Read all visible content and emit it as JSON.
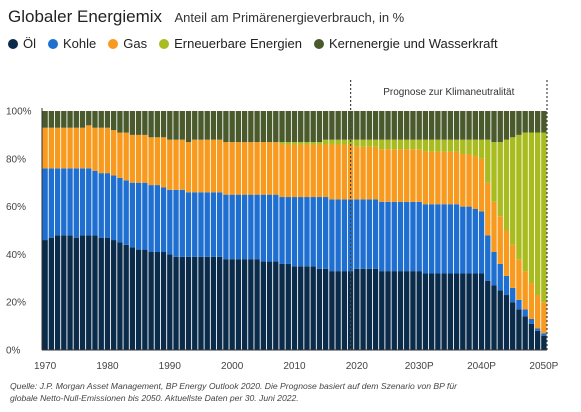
{
  "header": {
    "title": "Globaler Energiemix",
    "subtitle": "Anteil am Primärenergieverbrauch, in %"
  },
  "legend": [
    {
      "name": "Öl",
      "color": "#0b2b4a"
    },
    {
      "name": "Kohle",
      "color": "#1f6fd1"
    },
    {
      "name": "Gas",
      "color": "#f79a1e"
    },
    {
      "name": "Erneuerbare Energien",
      "color": "#a8bc1f"
    },
    {
      "name": "Kernenergie und Wasserkraft",
      "color": "#4a5a2c"
    }
  ],
  "forecast_label": "Prognose zur Klimaneutralität",
  "source": {
    "line1": "Quelle: J.P. Morgan Asset Management, BP Energy Outlook 2020. Die Prognose basiert auf dem Szenario von BP für",
    "line2": "globale Netto-Null-Emissionen bis 2050. Aktuellste Daten per 30. Juni 2022."
  },
  "chart_data": {
    "type": "bar",
    "stacked": true,
    "ylim": [
      0,
      100
    ],
    "y_ticks": [
      "0%",
      "20%",
      "40%",
      "60%",
      "80%",
      "100%"
    ],
    "x_tick_labels": [
      "1970",
      "1980",
      "1990",
      "2000",
      "2010",
      "2020",
      "2030P",
      "2040P",
      "2050P"
    ],
    "forecast_start": "2019",
    "x": [
      "1970",
      "1971",
      "1972",
      "1973",
      "1974",
      "1975",
      "1976",
      "1977",
      "1978",
      "1979",
      "1980",
      "1981",
      "1982",
      "1983",
      "1984",
      "1985",
      "1986",
      "1987",
      "1988",
      "1989",
      "1990",
      "1991",
      "1992",
      "1993",
      "1994",
      "1995",
      "1996",
      "1997",
      "1998",
      "1999",
      "2000",
      "2001",
      "2002",
      "2003",
      "2004",
      "2005",
      "2006",
      "2007",
      "2008",
      "2009",
      "2010",
      "2011",
      "2012",
      "2013",
      "2014",
      "2015",
      "2016",
      "2017",
      "2018",
      "2019",
      "2020",
      "2021",
      "2022",
      "2023",
      "2024",
      "2025",
      "2026",
      "2027",
      "2028",
      "2029",
      "2030",
      "2031",
      "2032",
      "2033",
      "2034",
      "2035",
      "2036",
      "2037",
      "2038",
      "2039",
      "2040",
      "2041",
      "2042",
      "2043",
      "2044",
      "2045",
      "2046",
      "2047",
      "2048",
      "2049",
      "2050"
    ],
    "series": [
      {
        "name": "Öl",
        "values": [
          46,
          47,
          48,
          48,
          48,
          47,
          48,
          48,
          48,
          47,
          47,
          46,
          45,
          44,
          43,
          42,
          42,
          41,
          41,
          41,
          40,
          39,
          39,
          39,
          39,
          39,
          39,
          39,
          39,
          38,
          38,
          38,
          38,
          38,
          38,
          37,
          37,
          37,
          36,
          36,
          35,
          35,
          35,
          35,
          34,
          34,
          33,
          33,
          33,
          33,
          34,
          34,
          34,
          34,
          33,
          33,
          33,
          33,
          33,
          33,
          33,
          32,
          32,
          32,
          32,
          32,
          32,
          32,
          32,
          32,
          32,
          29,
          27,
          25,
          23,
          20,
          17,
          14,
          11,
          8,
          6
        ]
      },
      {
        "name": "Kohle",
        "values": [
          30,
          29,
          28,
          28,
          28,
          29,
          28,
          28,
          27,
          27,
          27,
          27,
          27,
          27,
          27,
          28,
          28,
          28,
          28,
          27,
          27,
          28,
          28,
          27,
          27,
          27,
          27,
          27,
          27,
          27,
          27,
          27,
          27,
          27,
          27,
          28,
          28,
          28,
          28,
          28,
          29,
          29,
          29,
          29,
          30,
          30,
          30,
          30,
          30,
          30,
          29,
          29,
          29,
          29,
          29,
          29,
          29,
          29,
          29,
          29,
          29,
          29,
          29,
          29,
          29,
          29,
          29,
          28,
          28,
          27,
          26,
          19,
          14,
          11,
          8,
          6,
          4,
          3,
          2,
          1,
          1
        ]
      },
      {
        "name": "Gas",
        "values": [
          17,
          17,
          17,
          17,
          17,
          17,
          17,
          18,
          18,
          19,
          19,
          19,
          19,
          20,
          20,
          20,
          20,
          20,
          20,
          21,
          21,
          21,
          21,
          21,
          22,
          22,
          22,
          22,
          22,
          22,
          22,
          22,
          22,
          22,
          22,
          22,
          22,
          22,
          22,
          22,
          22,
          22,
          22,
          22,
          22,
          22,
          23,
          23,
          23,
          23,
          22,
          22,
          22,
          22,
          22,
          22,
          22,
          22,
          22,
          22,
          22,
          22,
          22,
          22,
          22,
          22,
          22,
          22,
          22,
          22,
          22,
          22,
          21,
          20,
          19,
          18,
          17,
          16,
          15,
          14,
          13
        ]
      },
      {
        "name": "Erneuerbare Energien",
        "values": [
          0,
          0,
          0,
          0,
          0,
          0,
          0,
          0,
          0,
          0,
          0,
          0,
          0,
          0,
          0,
          0,
          0,
          0,
          0,
          0,
          0,
          0,
          0,
          0,
          0,
          0,
          0,
          0,
          0,
          0,
          0,
          0,
          0,
          0,
          0,
          0,
          0,
          0,
          1,
          1,
          1,
          1,
          1,
          1,
          1,
          2,
          2,
          2,
          2,
          2,
          3,
          3,
          3,
          3,
          4,
          4,
          4,
          4,
          4,
          4,
          4,
          5,
          5,
          5,
          5,
          5,
          5,
          6,
          6,
          7,
          8,
          18,
          25,
          31,
          38,
          45,
          52,
          58,
          63,
          68,
          71
        ]
      },
      {
        "name": "Kernenergie und Wasserkraft",
        "values": [
          7,
          7,
          7,
          7,
          7,
          7,
          7,
          6,
          7,
          7,
          7,
          8,
          9,
          9,
          10,
          10,
          10,
          11,
          11,
          11,
          12,
          12,
          12,
          13,
          12,
          12,
          12,
          12,
          12,
          13,
          13,
          13,
          13,
          13,
          13,
          13,
          13,
          13,
          13,
          13,
          13,
          13,
          13,
          13,
          13,
          12,
          12,
          12,
          12,
          12,
          12,
          12,
          12,
          12,
          12,
          12,
          12,
          12,
          12,
          12,
          12,
          12,
          12,
          12,
          12,
          12,
          12,
          12,
          12,
          12,
          12,
          12,
          13,
          13,
          12,
          11,
          10,
          9,
          9,
          9,
          9
        ]
      }
    ]
  }
}
